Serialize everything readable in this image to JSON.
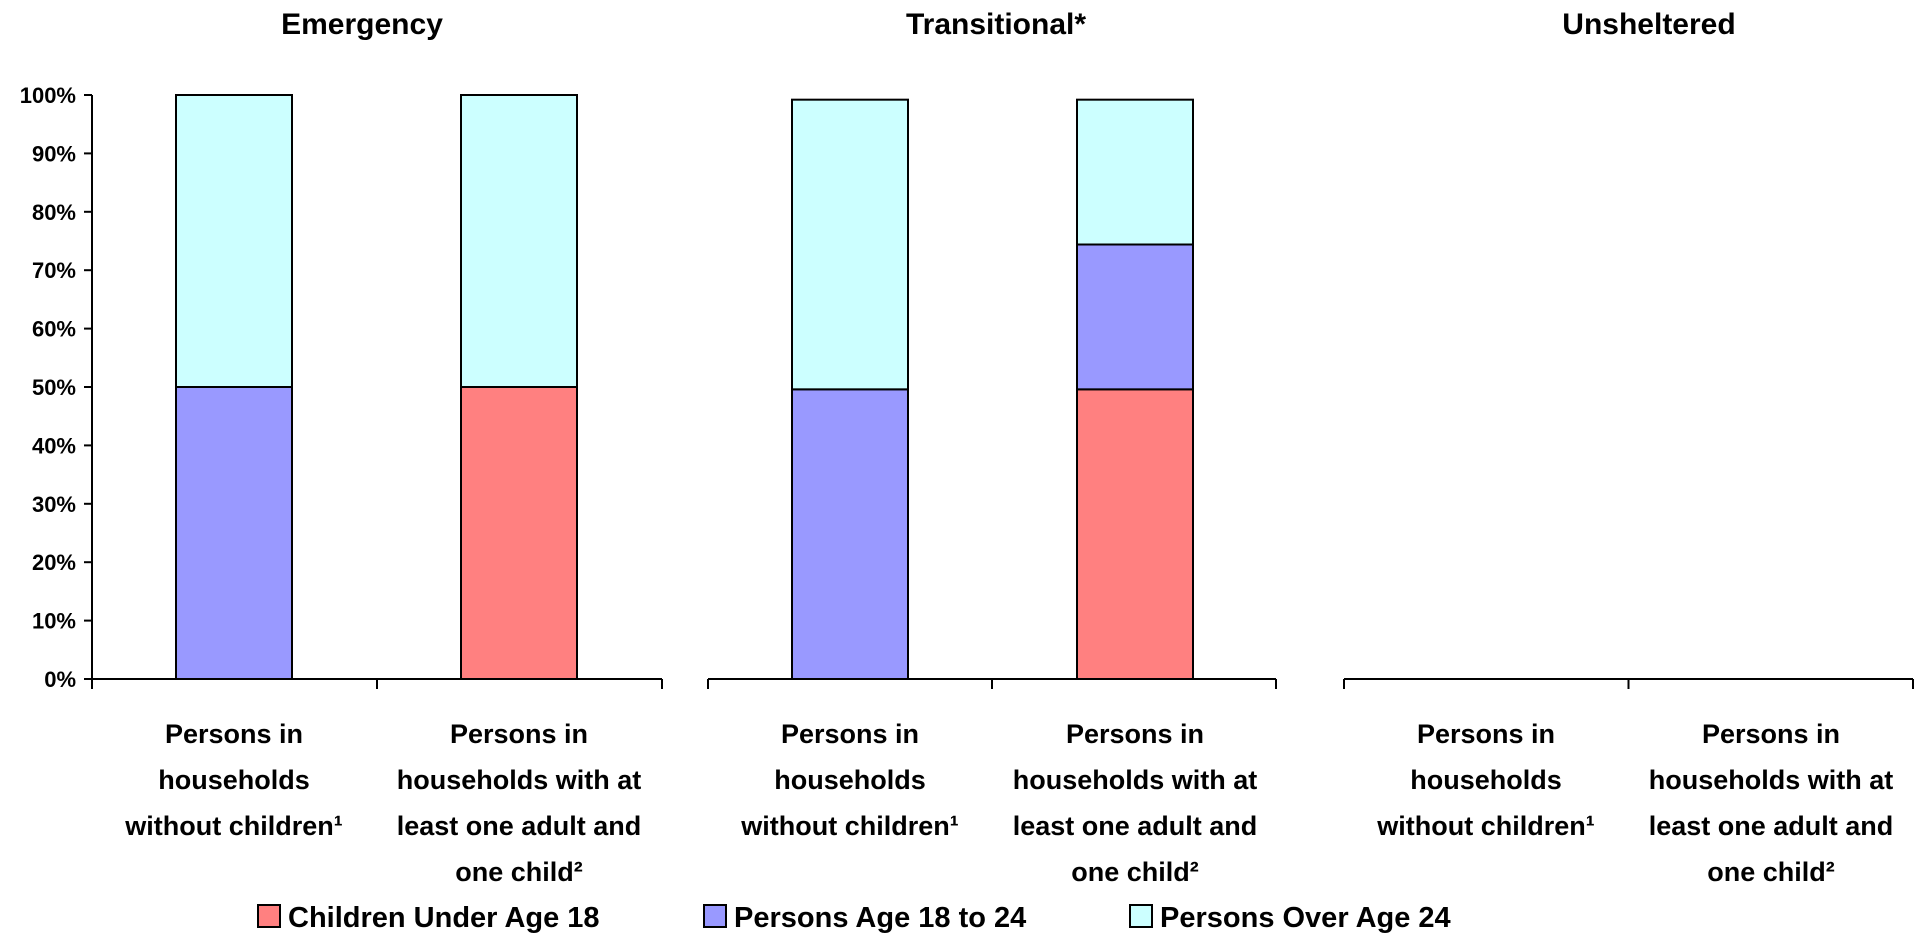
{
  "chart_data": {
    "type": "bar",
    "stacked": true,
    "percent": true,
    "y_ticks": [
      "0%",
      "10%",
      "20%",
      "30%",
      "40%",
      "50%",
      "60%",
      "70%",
      "80%",
      "90%",
      "100%"
    ],
    "ylim": [
      0,
      100
    ],
    "grid": false,
    "legend_position": "bottom",
    "series": [
      {
        "name": "Children Under Age 18",
        "color": "#ff8080"
      },
      {
        "name": "Persons Age 18 to 24",
        "color": "#9999ff"
      },
      {
        "name": "Persons Over Age 24",
        "color": "#ccffff"
      }
    ],
    "panels": [
      {
        "title": "Emergency",
        "categories": [
          {
            "label_lines": [
              "Persons in",
              "households",
              "without children¹"
            ],
            "values": [
              0,
              50,
              50
            ]
          },
          {
            "label_lines": [
              "Persons in",
              "households with at",
              "least one adult and",
              "one child²"
            ],
            "values": [
              50,
              0,
              50
            ]
          }
        ]
      },
      {
        "title": "Transitional*",
        "categories": [
          {
            "label_lines": [
              "Persons in",
              "households",
              "without children¹"
            ],
            "values": [
              0,
              49.6,
              49.6
            ]
          },
          {
            "label_lines": [
              "Persons in",
              "households with at",
              "least one adult and",
              "one child²"
            ],
            "values": [
              49.6,
              24.8,
              24.8
            ]
          }
        ]
      },
      {
        "title": "Unsheltered",
        "categories": [
          {
            "label_lines": [
              "Persons in",
              "households",
              "without children¹"
            ],
            "values": [
              0,
              0,
              0
            ]
          },
          {
            "label_lines": [
              "Persons in",
              "households with at",
              "least one adult and",
              "one child²"
            ],
            "values": [
              0,
              0,
              0
            ]
          }
        ]
      }
    ]
  }
}
